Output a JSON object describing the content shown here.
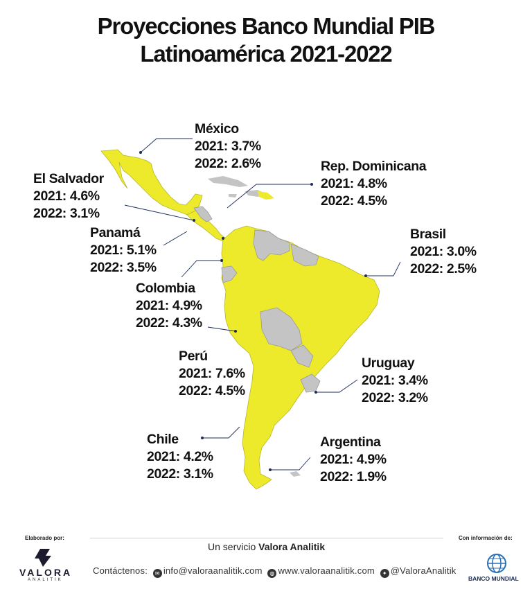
{
  "title": {
    "line1": "Proyecciones Banco Mundial PIB",
    "line2": "Latinoamérica 2021-2022"
  },
  "countries": [
    {
      "name": "México",
      "y2021": "2021: 3.7%",
      "y2022": "2022: 2.6%"
    },
    {
      "name": "Rep. Dominicana",
      "y2021": "2021: 4.8%",
      "y2022": "2022: 4.5%"
    },
    {
      "name": "El Salvador",
      "y2021": "2021: 4.6%",
      "y2022": "2022: 3.1%"
    },
    {
      "name": "Panamá",
      "y2021": "2021: 5.1%",
      "y2022": "2022: 3.5%"
    },
    {
      "name": "Brasil",
      "y2021": "2021:  3.0%",
      "y2022": "2022: 2.5%"
    },
    {
      "name": "Colombia",
      "y2021": "2021: 4.9%",
      "y2022": "2022: 4.3%"
    },
    {
      "name": "Perú",
      "y2021": "2021: 7.6%",
      "y2022": "2022: 4.5%"
    },
    {
      "name": "Uruguay",
      "y2021": "2021: 3.4%",
      "y2022": "2022: 3.2%"
    },
    {
      "name": "Chile",
      "y2021": "2021: 4.2%",
      "y2022": "2022: 3.1%"
    },
    {
      "name": "Argentina",
      "y2021": "2021: 4.9%",
      "y2022": "2022: 1.9%"
    }
  ],
  "colors": {
    "highlight": "#ecea2a",
    "other_country": "#c4c4c4",
    "leader_line": "#1c2d5a"
  },
  "footer": {
    "elaborado": "Elaborado por:",
    "con_info": "Con información de:",
    "service_prefix": "Un servicio ",
    "service_brand": "Valora Analitik",
    "contact_label": "Contáctenos:",
    "email": "info@valoraanalitik.com",
    "web": "www.valoraanalitik.com",
    "twitter": "@ValoraAnalitik",
    "logo_left_name": "VALORA",
    "logo_left_sub": "ANALITIK",
    "logo_right_name": "BANCO MUNDIAL"
  }
}
